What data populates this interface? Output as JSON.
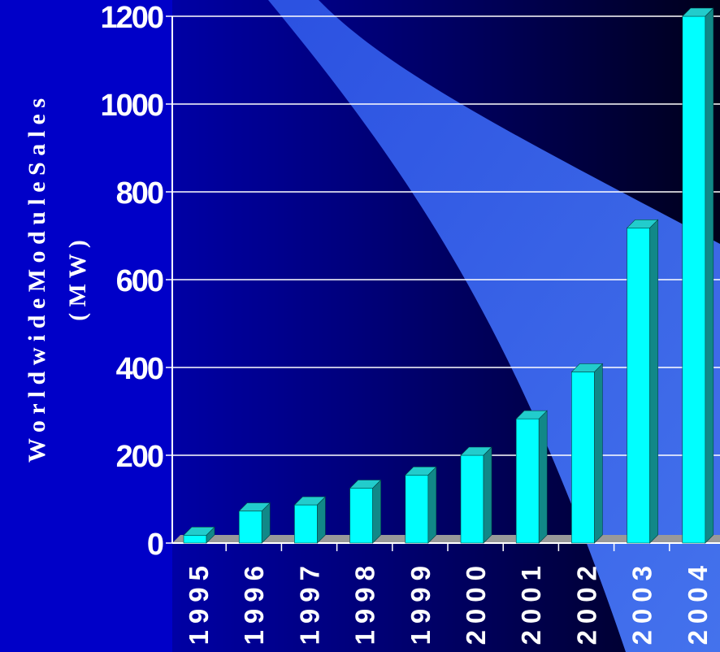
{
  "chart_data": {
    "type": "bar",
    "categories": [
      "1995",
      "1996",
      "1997",
      "1998",
      "1999",
      "2000",
      "2001",
      "2002",
      "2003",
      "2004"
    ],
    "values": [
      18,
      73,
      87,
      125,
      155,
      200,
      283,
      390,
      718,
      1200
    ],
    "ylabel_line1": "W o r l d w i d e  M o d u l e  S a l e s",
    "ylabel_line2": "( M W )",
    "yticks": [
      "0",
      "200",
      "400",
      "600",
      "800",
      "1000",
      "1200"
    ],
    "ylim": [
      0,
      1200
    ],
    "grid": true,
    "colors": {
      "bar_front": "#00ffff",
      "bar_top": "#22cccc",
      "bar_side": "#118888",
      "grid": "#ffffff",
      "floor": "#999999",
      "background_left": "#0000cc",
      "background_right": "#000020",
      "swoosh": "#3a6cff"
    }
  }
}
